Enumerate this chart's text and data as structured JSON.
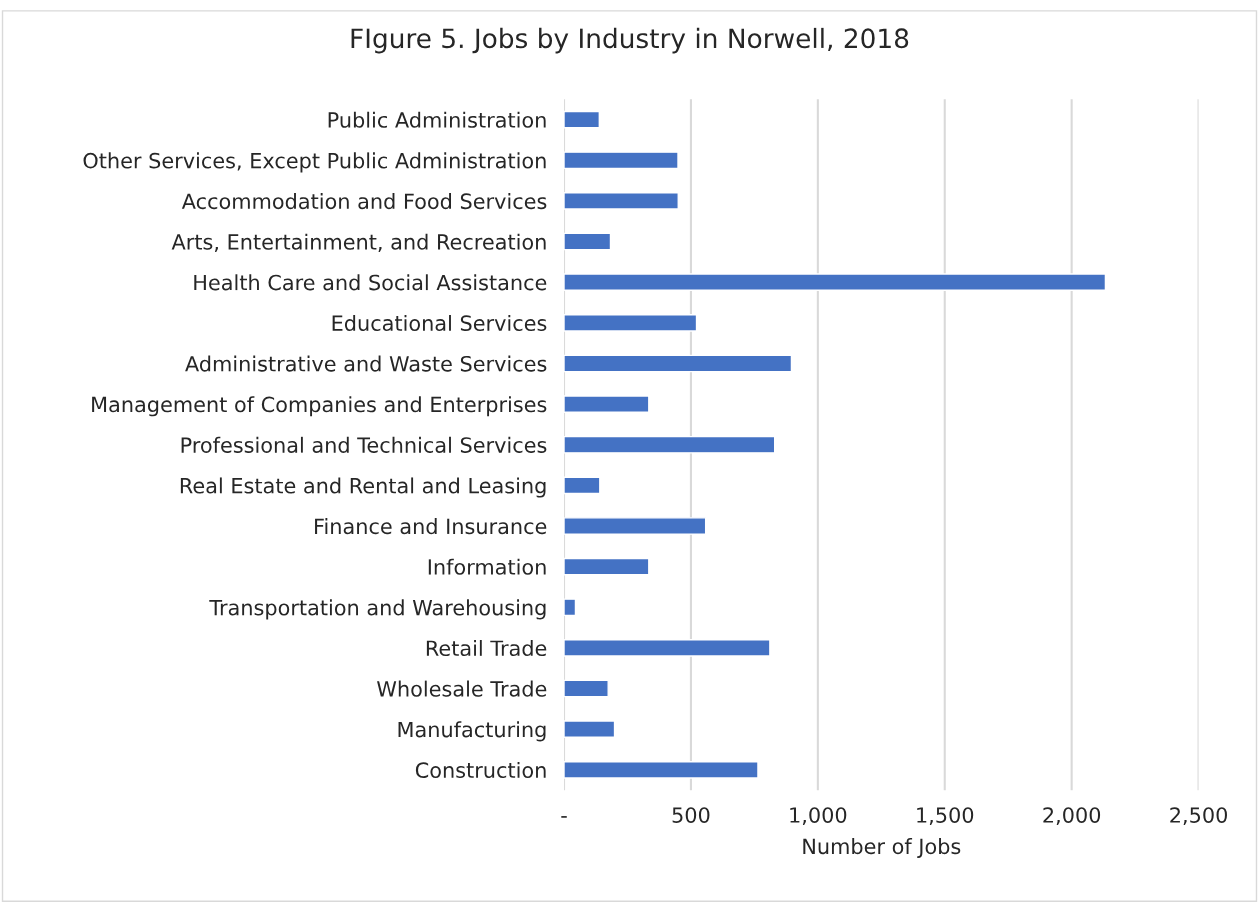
{
  "chart_data": {
    "type": "bar",
    "orientation": "horizontal",
    "title": "FIgure 5. Jobs by Industry in Norwell, 2018",
    "xlabel": "Number of Jobs",
    "categories": [
      "Public Administration",
      "Other Services, Except Public Administration",
      "Accommodation and Food Services",
      "Arts, Entertainment, and Recreation",
      "Health Care and Social Assistance",
      "Educational Services",
      "Administrative and Waste Services",
      "Management of Companies and Enterprises",
      "Professional and Technical Services",
      "Real Estate and Rental and Leasing",
      "Finance and Insurance",
      "Information",
      "Transportation and Warehousing",
      "Retail Trade",
      "Wholesale Trade",
      "Manufacturing",
      "Construction"
    ],
    "values": [
      139,
      449,
      450,
      183,
      2133,
      522,
      896,
      334,
      830,
      141,
      558,
      334,
      45,
      811,
      174,
      199,
      764
    ],
    "color": "#4472c4",
    "xlim": [
      0,
      2500
    ],
    "xticks": [
      {
        "value": 0,
        "label": "-"
      },
      {
        "value": 500,
        "label": "500"
      },
      {
        "value": 1000,
        "label": "1,000"
      },
      {
        "value": 1500,
        "label": "1,500"
      },
      {
        "value": 2000,
        "label": "2,000"
      },
      {
        "value": 2500,
        "label": "2,500"
      }
    ],
    "grid": "x",
    "legend": false
  }
}
